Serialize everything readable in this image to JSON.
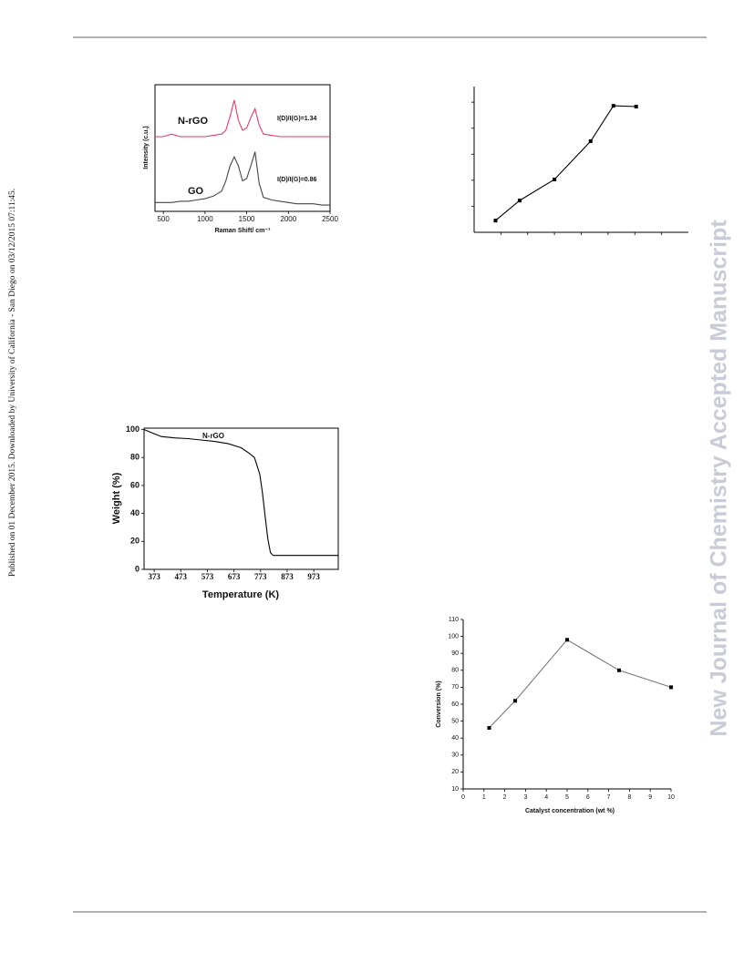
{
  "side_note": "Published on 01 December 2015. Downloaded by University of California - San Diego on 03/12/2015 07:11:45.",
  "watermark": "New Journal of Chemistry Accepted Manuscript",
  "chart_data": [
    {
      "type": "line",
      "frame": "box",
      "tick_labels": true,
      "xlabel": "Raman Shift/ cm⁻¹",
      "ylabel": "Intensity (c.u.)",
      "annotations": [
        "I(D)/I(G)=1.34",
        "I(D)/I(G)=0.86"
      ],
      "x": [
        400,
        500,
        600,
        700,
        800,
        900,
        1000,
        1100,
        1200,
        1250,
        1300,
        1350,
        1400,
        1450,
        1500,
        1550,
        1600,
        1650,
        1700,
        1800,
        1900,
        2000,
        2100,
        2200,
        2300,
        2400,
        2500
      ],
      "series": [
        {
          "name": "N-rGO",
          "color": "#e8386a",
          "values": [
            59,
            59,
            61,
            59,
            59,
            59,
            59,
            60,
            61,
            64,
            75,
            88,
            72,
            64,
            66,
            74,
            81,
            68,
            61,
            60,
            59,
            59,
            59,
            59,
            59,
            59,
            59
          ]
        },
        {
          "name": "GO",
          "color": "#444444",
          "values": [
            7,
            7,
            7,
            8,
            8,
            9,
            10,
            12,
            16,
            24,
            36,
            43,
            36,
            24,
            26,
            36,
            47,
            22,
            11,
            9,
            8,
            7,
            6,
            6,
            6,
            5,
            5
          ]
        }
      ],
      "xlim": [
        400,
        2500
      ],
      "ylim": [
        0,
        100
      ],
      "xticks": [
        500,
        1000,
        1500,
        2000,
        2500
      ],
      "yticks": []
    },
    {
      "type": "line",
      "frame": "axes",
      "tick_labels": false,
      "markers": true,
      "color": "#000000",
      "x": [
        0.8,
        1.7,
        3,
        4.35,
        5.2,
        6.05
      ],
      "values": [
        0.45,
        1.22,
        2.03,
        3.5,
        4.86,
        4.83
      ],
      "xlim": [
        0,
        8
      ],
      "ylim": [
        0,
        5.6
      ],
      "xticks": [
        1,
        2,
        3,
        4,
        5,
        6,
        7
      ],
      "yticks": [
        1,
        2,
        3,
        4,
        5
      ]
    },
    {
      "type": "line",
      "frame": "box",
      "tick_labels": true,
      "color": "#000000",
      "xlabel": "Temperature (K)",
      "ylabel": "Weight (%)",
      "annotations": [
        "N-rGO"
      ],
      "x": [
        335,
        373,
        400,
        450,
        500,
        550,
        600,
        650,
        700,
        730,
        750,
        770,
        780,
        790,
        800,
        810,
        820,
        873,
        973,
        1065
      ],
      "values": [
        100,
        97,
        95,
        94,
        93.5,
        92.5,
        91.5,
        90,
        87,
        83,
        80,
        68,
        55,
        38,
        22,
        12,
        10,
        10,
        10,
        10
      ],
      "xlim": [
        335,
        1065
      ],
      "ylim": [
        0,
        101
      ],
      "xticks": [
        373,
        473,
        573,
        673,
        773,
        873,
        973
      ],
      "yticks": [
        0,
        20,
        40,
        60,
        80,
        100
      ]
    },
    {
      "type": "line",
      "frame": "axes",
      "tick_labels": true,
      "markers": true,
      "color": "#777777",
      "xlabel": "Catalyst concentration (wt %)",
      "ylabel": "Conversion (%)",
      "x": [
        1.25,
        2.5,
        5,
        7.5,
        10
      ],
      "values": [
        46,
        62,
        98,
        80,
        70
      ],
      "xlim": [
        0,
        10
      ],
      "ylim": [
        10,
        110
      ],
      "xticks": [
        0,
        1,
        2,
        3,
        4,
        5,
        6,
        7,
        8,
        9,
        10
      ],
      "yticks": [
        10,
        20,
        30,
        40,
        50,
        60,
        70,
        80,
        90,
        100,
        110
      ]
    }
  ]
}
